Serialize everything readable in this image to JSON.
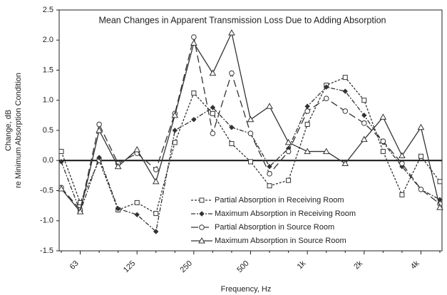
{
  "chart_data": {
    "type": "line",
    "title": "Mean Changes in Apparent Transmission Loss Due to Adding Absorption",
    "ylabel": [
      "Change, dB",
      "re Minimum Absorption Condition"
    ],
    "xlabel": "Frequency, Hz",
    "categories": [
      null,
      "63",
      null,
      null,
      "125",
      null,
      null,
      "250",
      null,
      null,
      "500",
      null,
      null,
      "1k",
      null,
      null,
      "2k",
      null,
      null,
      "4k",
      null
    ],
    "ylim": [
      -1.5,
      2.5
    ],
    "yticks": [
      {
        "value": -1.5,
        "label": "-1.5"
      },
      {
        "value": -1,
        "label": "-1.0"
      },
      {
        "value": -0.5,
        "label": "-0.5"
      },
      {
        "value": 0,
        "label": "0.0"
      },
      {
        "value": 0.5,
        "label": "0.5"
      },
      {
        "value": 1,
        "label": "1.0"
      },
      {
        "value": 1.5,
        "label": "1.5"
      },
      {
        "value": 2,
        "label": "2.0"
      },
      {
        "value": 2.5,
        "label": "2.5"
      }
    ],
    "legend": "bottom",
    "series": [
      {
        "name": "Partial Absorption in Receiving Room",
        "color": "#333333",
        "marker": "square",
        "dash": "3,2",
        "values": [
          0.15,
          -0.7,
          0.0,
          -0.82,
          -0.7,
          -0.88,
          0.3,
          1.12,
          0.78,
          0.28,
          -0.02,
          -0.42,
          -0.33,
          0.6,
          1.25,
          1.38,
          1.0,
          0.15,
          -0.57,
          0.07,
          -0.35
        ]
      },
      {
        "name": "Maximum Absorption in Receiving Room",
        "color": "#333333",
        "marker": "diamond",
        "dash": "6,2,2,2",
        "values": [
          -0.02,
          -0.85,
          0.05,
          -0.8,
          -0.9,
          -1.18,
          0.5,
          0.68,
          0.88,
          0.55,
          0.45,
          -0.1,
          0.2,
          0.9,
          1.22,
          1.15,
          0.75,
          0.3,
          -0.1,
          -0.48,
          -0.65
        ]
      },
      {
        "name": "Partial Absorption in Source Room",
        "color": "#333333",
        "marker": "circle",
        "dash": "10,5",
        "values": [
          -0.45,
          -0.82,
          0.6,
          -0.05,
          0.12,
          -0.15,
          0.78,
          2.05,
          0.45,
          1.45,
          0.45,
          -0.22,
          0.15,
          0.82,
          1.03,
          0.82,
          0.62,
          0.32,
          -0.05,
          -0.48,
          -0.72
        ]
      },
      {
        "name": "Maximum Absorption in Source Room",
        "color": "#333333",
        "marker": "triangle",
        "dash": "none",
        "values": [
          -0.47,
          -0.85,
          0.5,
          -0.1,
          0.18,
          -0.35,
          0.75,
          1.95,
          1.45,
          2.12,
          0.68,
          0.9,
          0.3,
          0.15,
          0.15,
          -0.05,
          0.35,
          0.72,
          0.08,
          0.55,
          -0.78
        ]
      }
    ]
  }
}
